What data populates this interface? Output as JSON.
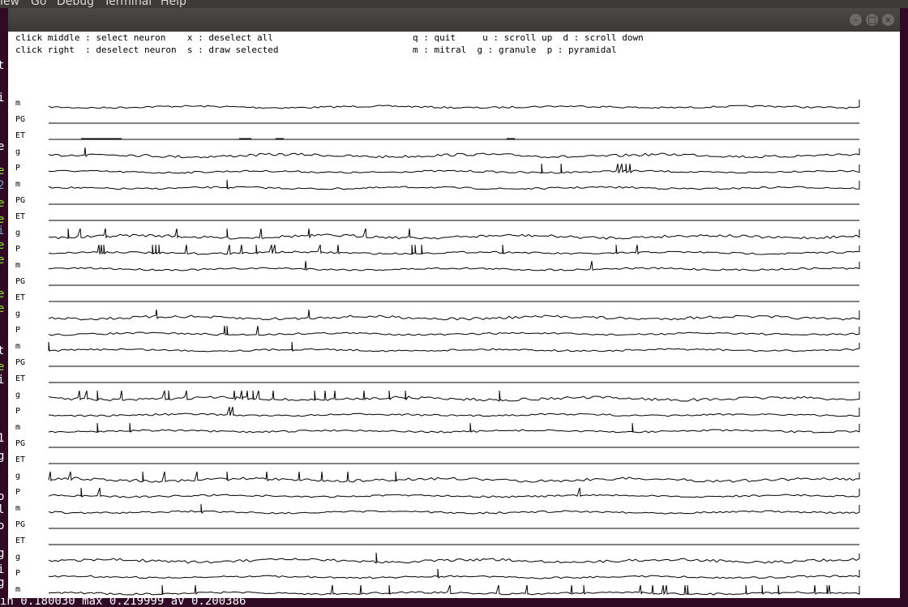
{
  "background": {
    "menu_items": [
      "iew",
      "Go",
      "Debug",
      "Terminal",
      "Help"
    ],
    "left_gutter": [
      {
        "ch": "t",
        "color": "#ffffff"
      },
      {
        "ch": "i",
        "color": "#ffffff"
      },
      {
        "ch": "e",
        "color": "#ffffff"
      },
      {
        "ch": "e",
        "color": "#8ae234"
      },
      {
        "ch": "2",
        "color": "#729fcf"
      },
      {
        "ch": "e",
        "color": "#8ae234"
      },
      {
        "ch": "e",
        "color": "#8ae234"
      },
      {
        "ch": "i",
        "color": "#729fcf"
      },
      {
        "ch": "e",
        "color": "#8ae234"
      },
      {
        "ch": "e",
        "color": "#8ae234"
      },
      {
        "ch": "e",
        "color": "#8ae234"
      },
      {
        "ch": "e",
        "color": "#8ae234"
      },
      {
        "ch": "t",
        "color": "#ffffff"
      },
      {
        "ch": "e",
        "color": "#8ae234"
      },
      {
        "ch": "i",
        "color": "#ffffff"
      },
      {
        "ch": "1",
        "color": "#ffffff"
      },
      {
        "ch": "g",
        "color": "#ffffff"
      },
      {
        "ch": "o",
        "color": "#ffffff"
      },
      {
        "ch": "l",
        "color": "#ffffff"
      },
      {
        "ch": "o",
        "color": "#ffffff"
      },
      {
        "ch": "g",
        "color": "#ffffff"
      },
      {
        "ch": "i",
        "color": "#ffffff"
      },
      {
        "ch": "g",
        "color": "#ffffff"
      }
    ],
    "status_line": "in 0.180030 max 0.219999 av 0.200386"
  },
  "window": {
    "buttons": [
      {
        "name": "minimize",
        "glyph": "–"
      },
      {
        "name": "maximize",
        "glyph": "□"
      },
      {
        "name": "close",
        "glyph": "×"
      }
    ]
  },
  "help": {
    "line1_left": "click middle : select neuron    x : deselect all",
    "line2_left": "click right  : deselect neuron  s : draw selected",
    "line1_right": "q : quit     u : scroll up  d : scroll down",
    "line2_right": "m : mitral  g : granule  p : pyramidal"
  },
  "traces": {
    "labels": [
      "m",
      "PG",
      "ET",
      "g",
      "P",
      "m",
      "PG",
      "ET",
      "g",
      "P",
      "m",
      "PG",
      "ET",
      "g",
      "P",
      "m",
      "PG",
      "ET",
      "g",
      "P",
      "m",
      "PG",
      "ET",
      "g",
      "P",
      "m",
      "PG",
      "ET",
      "g",
      "P",
      "m"
    ],
    "spikes": [
      [],
      [],
      [],
      [
        45
      ],
      [
        608,
        632,
        702,
        707,
        712,
        717
      ],
      [
        220
      ],
      [],
      [],
      [
        24,
        39,
        70,
        158,
        220,
        262,
        321,
        391,
        445
      ],
      [
        62,
        65,
        68,
        128,
        132,
        136,
        170,
        223,
        238,
        256,
        275,
        279,
        335,
        357,
        448,
        452,
        460,
        560,
        700,
        726
      ],
      [
        317,
        670
      ],
      [],
      [],
      [
        133,
        321
      ],
      [
        217,
        220,
        258
      ],
      [
        0,
        300
      ],
      [],
      [],
      [
        38,
        47,
        60,
        90,
        143,
        148,
        170,
        229,
        238,
        245,
        252,
        259,
        277,
        328,
        341,
        353,
        389,
        420,
        440,
        556
      ],
      [
        223,
        227
      ],
      [
        60,
        100,
        520,
        720
      ],
      [],
      [],
      [
        2,
        27,
        116,
        143,
        183,
        220,
        269,
        309,
        337,
        369,
        428
      ],
      [
        40,
        63,
        655
      ],
      [
        188
      ],
      [],
      [],
      [
        404
      ],
      [
        480
      ],
      [
        140,
        181,
        350,
        385,
        420,
        495,
        555,
        590,
        645,
        660,
        730,
        745,
        758,
        762,
        785,
        788,
        860,
        880,
        900,
        945,
        960,
        963
      ]
    ],
    "flat_rows": [
      1,
      2,
      6,
      7,
      11,
      12,
      16,
      17,
      21,
      22,
      26,
      27
    ],
    "et_blips": {
      "2": [
        [
          40,
          90
        ],
        [
          235,
          250
        ],
        [
          280,
          290
        ],
        [
          565,
          575
        ]
      ]
    }
  }
}
